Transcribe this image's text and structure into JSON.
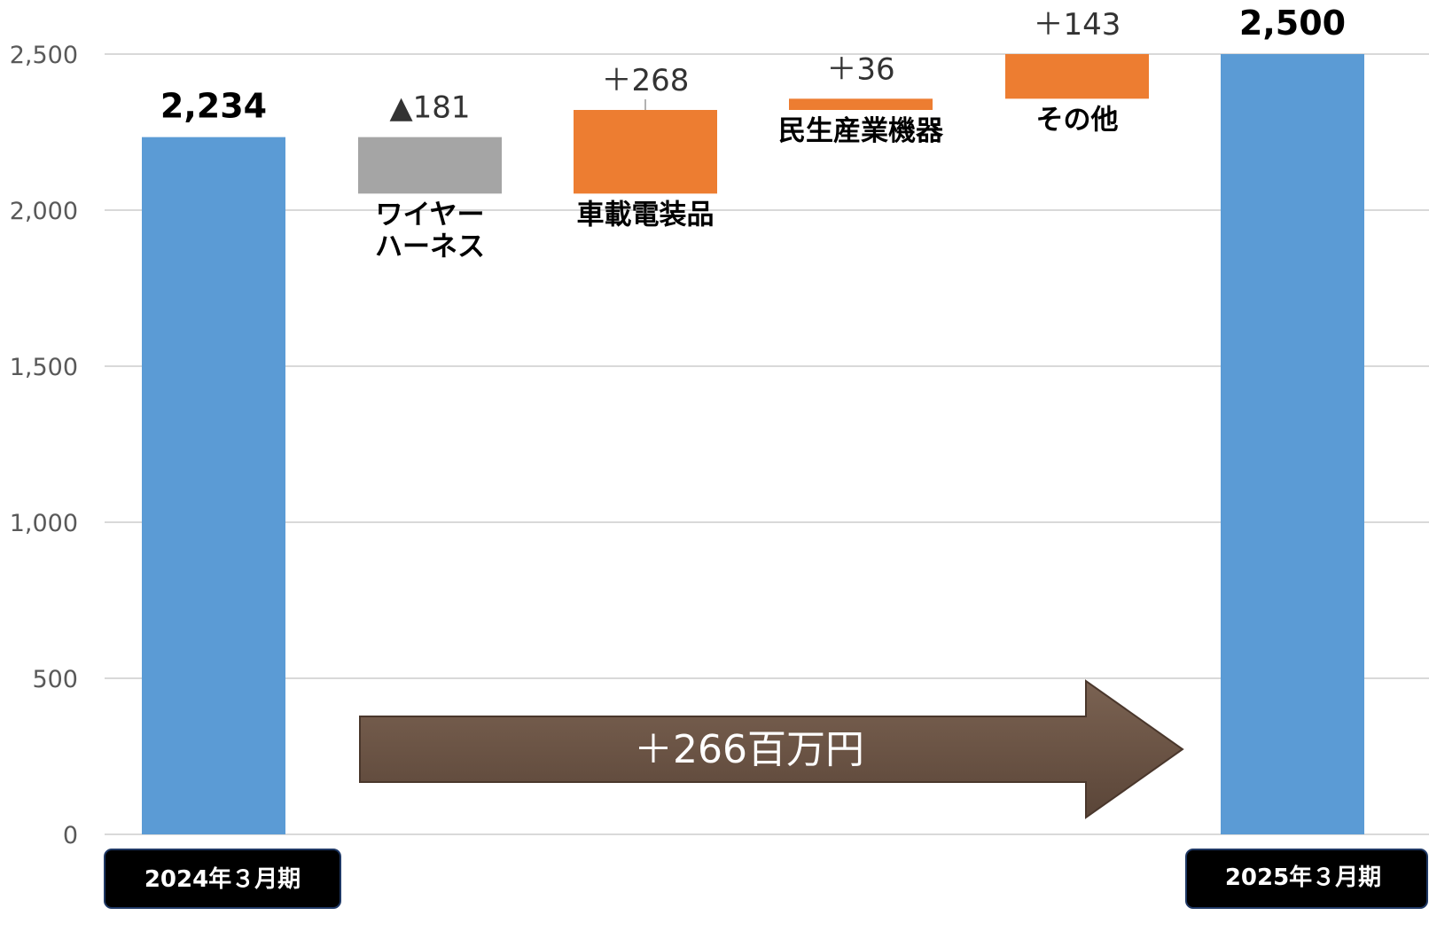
{
  "chart_data": {
    "type": "bar",
    "subtype": "waterfall",
    "categories": [
      "2024年３月期",
      "ワイヤーハーネス",
      "車載電装品",
      "民生産業機器",
      "その他",
      "2025年３月期"
    ],
    "items": [
      {
        "category": "2024年３月期",
        "kind": "total",
        "value": 2234,
        "value_label": "2,234",
        "label_lines": []
      },
      {
        "category": "ワイヤーハーネス",
        "kind": "decrease",
        "value": -181,
        "value_label": "▲181",
        "label_lines": [
          "ワイヤー",
          "ハーネス"
        ]
      },
      {
        "category": "車載電装品",
        "kind": "increase",
        "value": 268,
        "value_label": "＋268",
        "label_lines": [
          "車載電装品"
        ]
      },
      {
        "category": "民生産業機器",
        "kind": "increase",
        "value": 36,
        "value_label": "＋36",
        "label_lines": [
          "民生産業機器"
        ]
      },
      {
        "category": "その他",
        "kind": "increase",
        "value": 143,
        "value_label": "＋143",
        "label_lines": [
          "その他"
        ]
      },
      {
        "category": "2025年３月期",
        "kind": "total",
        "value": 2500,
        "value_label": "2,500",
        "label_lines": []
      }
    ],
    "period_labels": [
      "2024年３月期",
      "2025年３月期"
    ],
    "yticks": [
      0,
      500,
      1000,
      1500,
      2000,
      2500
    ],
    "ytick_labels": [
      "0",
      "500",
      "1,000",
      "1,500",
      "2,000",
      "2,500"
    ],
    "ylim": [
      0,
      2500
    ],
    "grid": true,
    "annotation": "＋266百万円",
    "title": "",
    "xlabel": "",
    "ylabel": ""
  },
  "colors": {
    "total": "#5b9bd5",
    "increase": "#ed7d31",
    "decrease": "#a5a5a5",
    "arrow": "#6b5445",
    "period_box": "#000000",
    "grid": "#d9d9d9"
  }
}
